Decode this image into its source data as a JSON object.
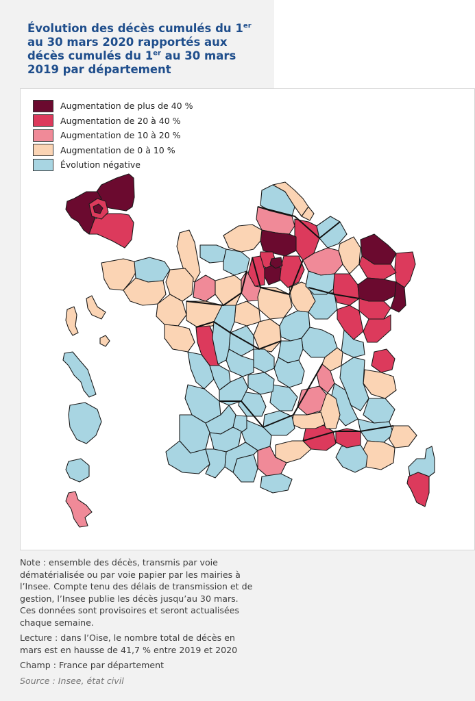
{
  "title": {
    "part1": "Évolution des décès cumulés du 1",
    "sup1": "er",
    "part2": " au 30 mars 2020 rapportés aux décès cumulés du 1",
    "sup2": "er",
    "part3": " au 30 mars 2019 par département"
  },
  "legend": [
    {
      "label": "Augmentation de plus de 40 %",
      "color": "#6b0a2f"
    },
    {
      "label": "Augmentation de 20 à 40 %",
      "color": "#dc3a5c"
    },
    {
      "label": "Augmentation de 10 à 20 %",
      "color": "#f08a98"
    },
    {
      "label": "Augmentation de 0 à 10 %",
      "color": "#fbd4b4"
    },
    {
      "label": "Évolution négative",
      "color": "#a8d5e2"
    }
  ],
  "notes": {
    "note": "Note : ensemble des décès, transmis par voie dématérialisée ou par voie papier par les mairies à l’Insee. Compte tenu des délais de transmission et de gestion, l’Insee publie les décès jusqu’au 30 mars. Ces données sont provisoires et seront actualisées chaque semaine.",
    "lecture": "Lecture : dans l’Oise, le nombre total de décès en mars est en hausse de 41,7 % entre 2019 et 2020",
    "champ": "Champ : France par département",
    "source": "Source : Insee, état civil"
  }
}
